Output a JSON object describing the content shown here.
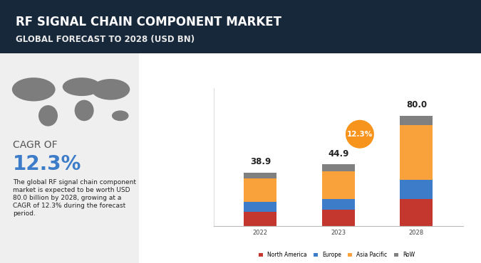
{
  "chart_data": {
    "type": "bar",
    "title": "RF SIGNAL CHAIN COMPONENT MARKET",
    "subtitle": "GLOBAL FORECAST TO 2028 (USD BN)",
    "categories": [
      "2022",
      "2023",
      "2028"
    ],
    "series": [
      {
        "name": "North America",
        "color": "#c4372f",
        "values": [
          10.3,
          11.8,
          19.6
        ]
      },
      {
        "name": "Europe",
        "color": "#3d7cc9",
        "values": [
          7.2,
          7.7,
          13.9
        ]
      },
      {
        "name": "Asia Pacific",
        "color": "#f9a23b",
        "values": [
          17.3,
          20.5,
          39.7
        ]
      },
      {
        "name": "RoW",
        "color": "#808080",
        "values": [
          4.1,
          4.9,
          6.8
        ]
      }
    ],
    "totals": [
      38.9,
      44.9,
      80.0
    ],
    "stacked": true,
    "ylim": [
      0,
      100
    ],
    "yticks": [],
    "tick_labels": "x",
    "legend": "lower center",
    "annotations": {
      "cagr_label": "CAGR OF",
      "cagr_value": "12.3%",
      "summary": "The global RF signal chain component market is expected to be worth USD 80.0 billion by 2028, growing at a CAGR of 12.3% during the forecast period.",
      "badge": "12.3%"
    }
  }
}
